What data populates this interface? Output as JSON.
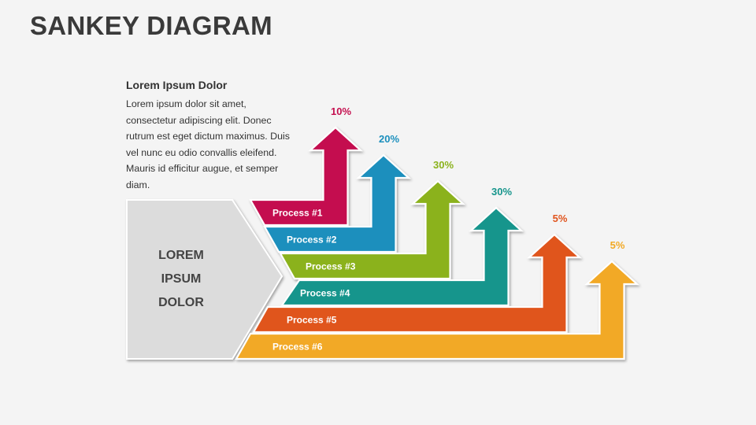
{
  "page": {
    "title": "SANKEY DIAGRAM"
  },
  "text_block": {
    "heading": "Lorem Ipsum Dolor",
    "body": "Lorem ipsum dolor sit amet, consectetur adipiscing elit. Donec rutrum est eget dictum maximus. Duis vel nunc eu odio convallis eleifend. Mauris id efficitur augue, et semper diam."
  },
  "source": {
    "lines": [
      "LOREM",
      "IPSUM",
      "DOLOR"
    ]
  },
  "flows": [
    {
      "label": "Process #1",
      "value_label": "10%",
      "color": "#c4104f"
    },
    {
      "label": "Process #2",
      "value_label": "20%",
      "color": "#1b8fbd"
    },
    {
      "label": "Process #3",
      "value_label": "30%",
      "color": "#8bb21c"
    },
    {
      "label": "Process #4",
      "value_label": "30%",
      "color": "#16958c"
    },
    {
      "label": "Process #5",
      "value_label": "5%",
      "color": "#e0541d"
    },
    {
      "label": "Process #6",
      "value_label": "5%",
      "color": "#f2a925"
    }
  ],
  "colors": {
    "source_box": "#dcdcdc",
    "background": "#f4f4f4"
  }
}
